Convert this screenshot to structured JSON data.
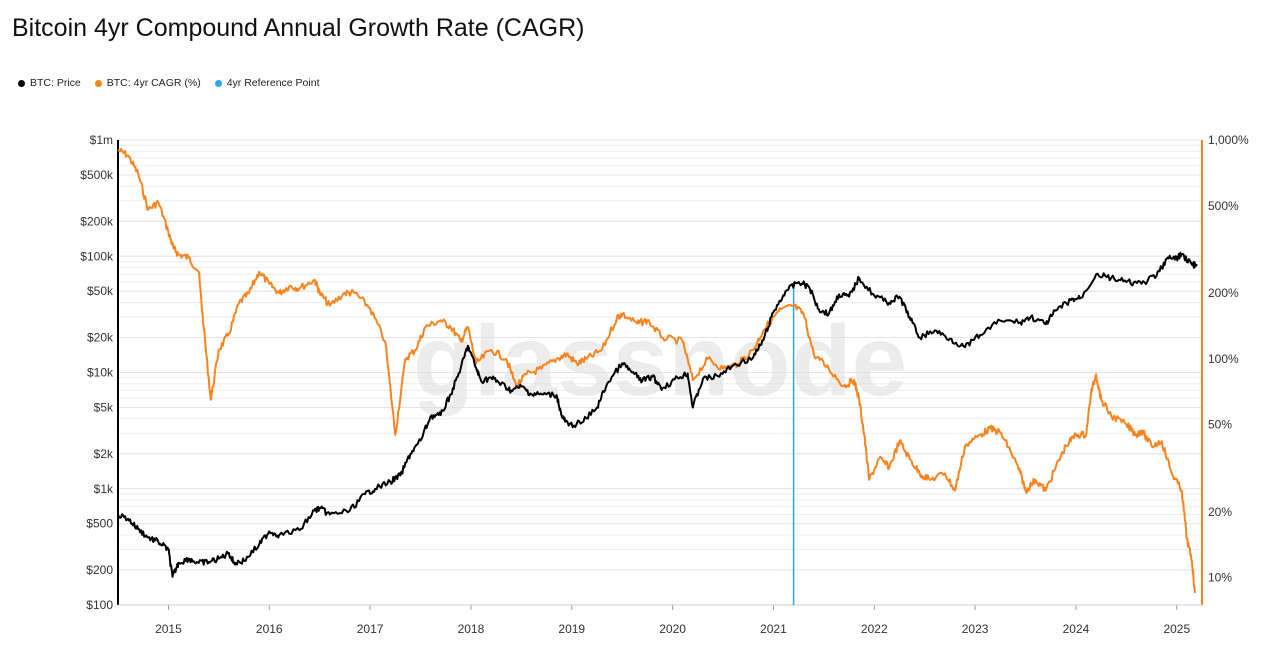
{
  "title": "Bitcoin 4yr Compound Annual Growth Rate (CAGR)",
  "watermark": "glassnode",
  "legend": [
    {
      "label": "BTC: Price",
      "color": "#000000"
    },
    {
      "label": "BTC: 4yr CAGR (%)",
      "color": "#f7841e"
    },
    {
      "label": "4yr Reference Point",
      "color": "#2aa8ee"
    }
  ],
  "chart_data": {
    "type": "line",
    "title": "Bitcoin 4yr Compound Annual Growth Rate (CAGR)",
    "x_ticks": [
      "2015",
      "2016",
      "2017",
      "2018",
      "2019",
      "2020",
      "2021",
      "2022",
      "2023",
      "2024",
      "2025"
    ],
    "y_left": {
      "scale": "log",
      "range": [
        100,
        1000000
      ],
      "ticks": [
        "$1m",
        "$500k",
        "$200k",
        "$100k",
        "$50k",
        "$20k",
        "$10k",
        "$5k",
        "$2k",
        "$1k",
        "$500",
        "$200",
        "$100"
      ]
    },
    "y_right": {
      "scale": "log",
      "range": [
        7.5,
        1000
      ],
      "ticks": [
        "1,000%",
        "500%",
        "200%",
        "100%",
        "50%",
        "20%",
        "10%"
      ]
    },
    "reference_line": {
      "name": "4yr Reference Point",
      "x": 2021.2
    },
    "series": [
      {
        "name": "BTC: Price",
        "axis": "left",
        "color": "#000000",
        "points": [
          [
            2014.5,
            600
          ],
          [
            2014.6,
            550
          ],
          [
            2014.7,
            450
          ],
          [
            2014.8,
            380
          ],
          [
            2014.9,
            350
          ],
          [
            2015.0,
            300
          ],
          [
            2015.04,
            175
          ],
          [
            2015.1,
            230
          ],
          [
            2015.2,
            250
          ],
          [
            2015.3,
            230
          ],
          [
            2015.4,
            235
          ],
          [
            2015.5,
            250
          ],
          [
            2015.6,
            280
          ],
          [
            2015.65,
            230
          ],
          [
            2015.75,
            240
          ],
          [
            2015.9,
            330
          ],
          [
            2016.0,
            430
          ],
          [
            2016.1,
            400
          ],
          [
            2016.3,
            440
          ],
          [
            2016.45,
            650
          ],
          [
            2016.5,
            680
          ],
          [
            2016.6,
            600
          ],
          [
            2016.8,
            650
          ],
          [
            2016.95,
            900
          ],
          [
            2017.05,
            1000
          ],
          [
            2017.2,
            1150
          ],
          [
            2017.3,
            1300
          ],
          [
            2017.4,
            2000
          ],
          [
            2017.5,
            2600
          ],
          [
            2017.6,
            4200
          ],
          [
            2017.7,
            4300
          ],
          [
            2017.8,
            6500
          ],
          [
            2017.9,
            11000
          ],
          [
            2017.97,
            17000
          ],
          [
            2018.05,
            11000
          ],
          [
            2018.1,
            8500
          ],
          [
            2018.2,
            9000
          ],
          [
            2018.3,
            8000
          ],
          [
            2018.4,
            7000
          ],
          [
            2018.5,
            7600
          ],
          [
            2018.6,
            6500
          ],
          [
            2018.7,
            6500
          ],
          [
            2018.85,
            6400
          ],
          [
            2018.9,
            4200
          ],
          [
            2018.97,
            3500
          ],
          [
            2019.1,
            3700
          ],
          [
            2019.25,
            5000
          ],
          [
            2019.35,
            8000
          ],
          [
            2019.5,
            12000
          ],
          [
            2019.6,
            10000
          ],
          [
            2019.7,
            8500
          ],
          [
            2019.8,
            9200
          ],
          [
            2019.9,
            7300
          ],
          [
            2020.05,
            9000
          ],
          [
            2020.15,
            9800
          ],
          [
            2020.2,
            5000
          ],
          [
            2020.3,
            8800
          ],
          [
            2020.45,
            9300
          ],
          [
            2020.6,
            11500
          ],
          [
            2020.8,
            13500
          ],
          [
            2020.9,
            19000
          ],
          [
            2021.0,
            33000
          ],
          [
            2021.12,
            50000
          ],
          [
            2021.25,
            60000
          ],
          [
            2021.35,
            55000
          ],
          [
            2021.45,
            35000
          ],
          [
            2021.55,
            32000
          ],
          [
            2021.65,
            47000
          ],
          [
            2021.75,
            45000
          ],
          [
            2021.85,
            65000
          ],
          [
            2022.0,
            46000
          ],
          [
            2022.15,
            40000
          ],
          [
            2022.25,
            45000
          ],
          [
            2022.35,
            30000
          ],
          [
            2022.45,
            20000
          ],
          [
            2022.6,
            23000
          ],
          [
            2022.75,
            19500
          ],
          [
            2022.9,
            16500
          ],
          [
            2023.05,
            21000
          ],
          [
            2023.25,
            28000
          ],
          [
            2023.45,
            27000
          ],
          [
            2023.55,
            30000
          ],
          [
            2023.7,
            26000
          ],
          [
            2023.8,
            34000
          ],
          [
            2023.95,
            42000
          ],
          [
            2024.05,
            44000
          ],
          [
            2024.2,
            70000
          ],
          [
            2024.35,
            65000
          ],
          [
            2024.5,
            60000
          ],
          [
            2024.65,
            58000
          ],
          [
            2024.8,
            68000
          ],
          [
            2024.9,
            95000
          ],
          [
            2025.0,
            96000
          ],
          [
            2025.05,
            104000
          ],
          [
            2025.15,
            85000
          ],
          [
            2025.2,
            83000
          ]
        ]
      },
      {
        "name": "BTC: 4yr CAGR (%)",
        "axis": "right",
        "color": "#f7841e",
        "points": [
          [
            2014.5,
            900
          ],
          [
            2014.6,
            850
          ],
          [
            2014.7,
            700
          ],
          [
            2014.8,
            480
          ],
          [
            2014.9,
            520
          ],
          [
            2015.0,
            380
          ],
          [
            2015.05,
            320
          ],
          [
            2015.1,
            300
          ],
          [
            2015.2,
            290
          ],
          [
            2015.3,
            250
          ],
          [
            2015.35,
            140
          ],
          [
            2015.42,
            65
          ],
          [
            2015.5,
            110
          ],
          [
            2015.6,
            130
          ],
          [
            2015.7,
            180
          ],
          [
            2015.8,
            200
          ],
          [
            2015.9,
            250
          ],
          [
            2016.0,
            220
          ],
          [
            2016.1,
            200
          ],
          [
            2016.2,
            215
          ],
          [
            2016.3,
            210
          ],
          [
            2016.45,
            230
          ],
          [
            2016.5,
            200
          ],
          [
            2016.6,
            175
          ],
          [
            2016.75,
            200
          ],
          [
            2016.85,
            200
          ],
          [
            2017.0,
            170
          ],
          [
            2017.15,
            120
          ],
          [
            2017.25,
            45
          ],
          [
            2017.35,
            100
          ],
          [
            2017.45,
            110
          ],
          [
            2017.55,
            140
          ],
          [
            2017.7,
            150
          ],
          [
            2017.8,
            140
          ],
          [
            2017.9,
            120
          ],
          [
            2017.97,
            140
          ],
          [
            2018.05,
            95
          ],
          [
            2018.2,
            110
          ],
          [
            2018.35,
            100
          ],
          [
            2018.45,
            75
          ],
          [
            2018.55,
            85
          ],
          [
            2018.7,
            90
          ],
          [
            2018.85,
            100
          ],
          [
            2018.95,
            105
          ],
          [
            2019.05,
            95
          ],
          [
            2019.15,
            100
          ],
          [
            2019.3,
            110
          ],
          [
            2019.45,
            155
          ],
          [
            2019.5,
            160
          ],
          [
            2019.65,
            145
          ],
          [
            2019.75,
            150
          ],
          [
            2019.9,
            125
          ],
          [
            2020.1,
            120
          ],
          [
            2020.2,
            80
          ],
          [
            2020.35,
            100
          ],
          [
            2020.5,
            90
          ],
          [
            2020.65,
            95
          ],
          [
            2020.8,
            110
          ],
          [
            2020.9,
            135
          ],
          [
            2021.05,
            165
          ],
          [
            2021.2,
            175
          ],
          [
            2021.3,
            160
          ],
          [
            2021.4,
            105
          ],
          [
            2021.55,
            90
          ],
          [
            2021.7,
            75
          ],
          [
            2021.8,
            80
          ],
          [
            2021.85,
            65
          ],
          [
            2021.9,
            45
          ],
          [
            2021.95,
            28
          ],
          [
            2022.05,
            35
          ],
          [
            2022.15,
            32
          ],
          [
            2022.25,
            42
          ],
          [
            2022.35,
            35
          ],
          [
            2022.45,
            30
          ],
          [
            2022.55,
            28
          ],
          [
            2022.7,
            30
          ],
          [
            2022.8,
            25
          ],
          [
            2022.9,
            40
          ],
          [
            2023.05,
            45
          ],
          [
            2023.15,
            48
          ],
          [
            2023.25,
            46
          ],
          [
            2023.35,
            38
          ],
          [
            2023.45,
            30
          ],
          [
            2023.5,
            25
          ],
          [
            2023.6,
            28
          ],
          [
            2023.7,
            25
          ],
          [
            2023.8,
            32
          ],
          [
            2023.9,
            40
          ],
          [
            2024.0,
            45
          ],
          [
            2024.1,
            45
          ],
          [
            2024.15,
            70
          ],
          [
            2024.2,
            85
          ],
          [
            2024.25,
            65
          ],
          [
            2024.35,
            55
          ],
          [
            2024.5,
            50
          ],
          [
            2024.6,
            45
          ],
          [
            2024.65,
            47
          ],
          [
            2024.75,
            40
          ],
          [
            2024.85,
            42
          ],
          [
            2024.95,
            30
          ],
          [
            2025.05,
            25
          ],
          [
            2025.1,
            15
          ],
          [
            2025.15,
            12
          ],
          [
            2025.18,
            8.5
          ]
        ]
      }
    ]
  }
}
